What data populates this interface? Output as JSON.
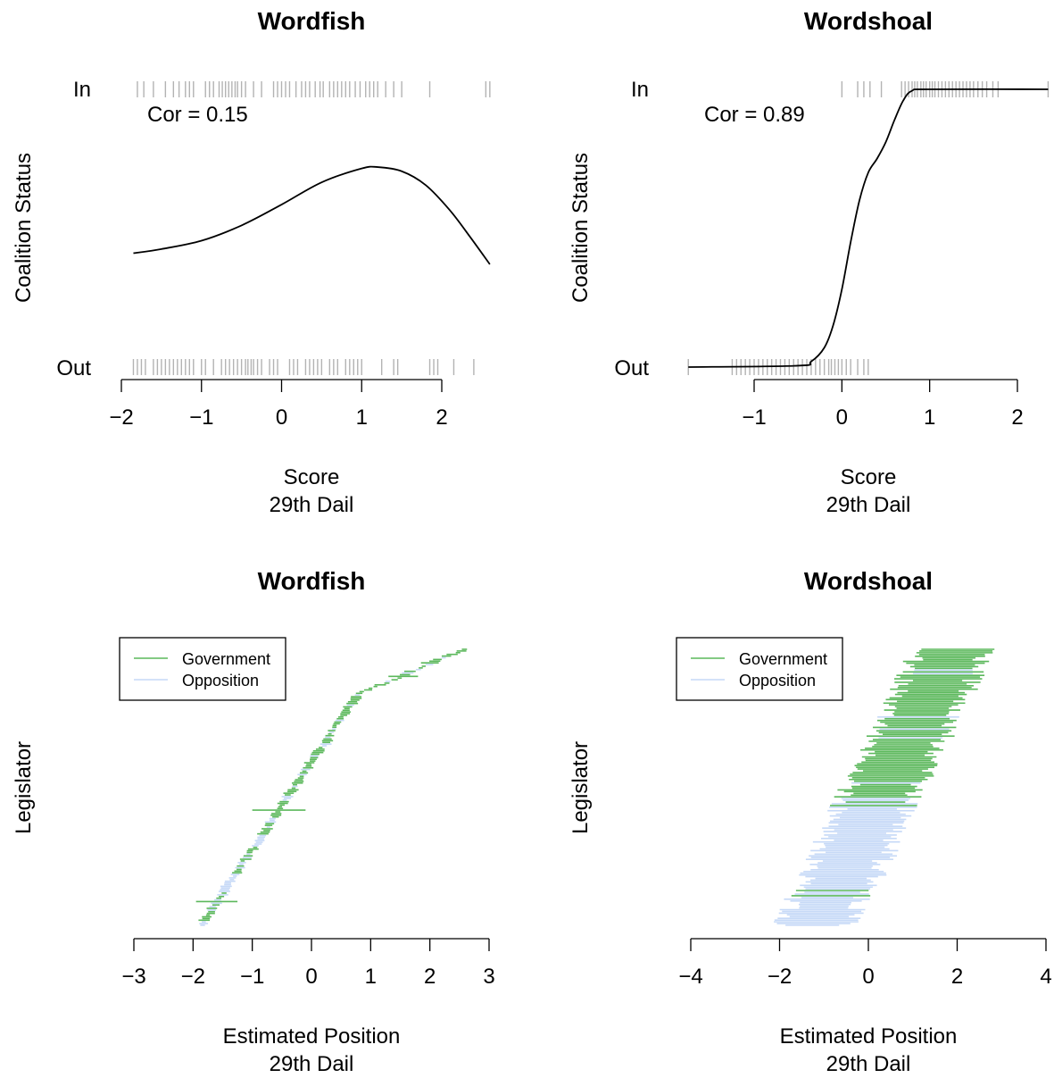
{
  "chart_data": [
    {
      "id": "p1",
      "type": "line",
      "title": "Wordfish",
      "xlabel": "Score",
      "xlabel2": "29th Dail",
      "ylabel": "Coalition Status",
      "y_category_labels": [
        "In",
        "Out"
      ],
      "xticks": [
        -2,
        -1,
        0,
        1,
        2
      ],
      "xlim": [
        -2.0,
        2.6
      ],
      "annotation": "Cor = 0.15",
      "curve": {
        "x": [
          -1.85,
          -1.5,
          -1.0,
          -0.5,
          0.0,
          0.5,
          1.0,
          1.2,
          1.5,
          1.8,
          2.1,
          2.35,
          2.6
        ],
        "p": [
          0.41,
          0.425,
          0.455,
          0.51,
          0.585,
          0.665,
          0.715,
          0.72,
          0.705,
          0.655,
          0.565,
          0.47,
          0.37
        ]
      },
      "rug_in": [
        -1.8,
        -1.72,
        -1.6,
        -1.45,
        -1.35,
        -1.28,
        -1.2,
        -1.15,
        -1.1,
        -0.95,
        -0.9,
        -0.85,
        -0.78,
        -0.74,
        -0.7,
        -0.66,
        -0.62,
        -0.58,
        -0.55,
        -0.5,
        -0.45,
        -0.35,
        -0.25,
        -0.1,
        -0.05,
        0.0,
        0.05,
        0.1,
        0.18,
        0.25,
        0.3,
        0.35,
        0.42,
        0.48,
        0.52,
        0.6,
        0.65,
        0.7,
        0.75,
        0.8,
        0.85,
        0.92,
        0.98,
        1.05,
        1.1,
        1.15,
        1.2,
        1.3,
        1.4,
        1.5,
        1.85,
        2.55,
        2.6
      ],
      "rug_out": [
        -1.85,
        -1.8,
        -1.75,
        -1.7,
        -1.6,
        -1.55,
        -1.5,
        -1.45,
        -1.4,
        -1.35,
        -1.3,
        -1.25,
        -1.2,
        -1.15,
        -1.1,
        -1.0,
        -0.95,
        -0.85,
        -0.75,
        -0.7,
        -0.65,
        -0.6,
        -0.55,
        -0.5,
        -0.45,
        -0.42,
        -0.38,
        -0.35,
        -0.3,
        -0.25,
        -0.15,
        -0.1,
        -0.05,
        0.1,
        0.15,
        0.2,
        0.3,
        0.35,
        0.4,
        0.45,
        0.5,
        0.6,
        0.65,
        0.7,
        0.8,
        0.85,
        0.9,
        0.95,
        1.0,
        1.25,
        1.4,
        1.45,
        1.85,
        1.9,
        1.95,
        2.15,
        2.4
      ]
    },
    {
      "id": "p2",
      "type": "line",
      "title": "Wordshoal",
      "xlabel": "Score",
      "xlabel2": "29th Dail",
      "ylabel": "Coalition Status",
      "y_category_labels": [
        "In",
        "Out"
      ],
      "xticks": [
        -1,
        0,
        1,
        2
      ],
      "xlim": [
        -1.75,
        2.35
      ],
      "annotation": "Cor = 0.89",
      "curve": {
        "x": [
          -1.75,
          -0.5,
          -0.35,
          -0.2,
          -0.1,
          0.0,
          0.1,
          0.2,
          0.3,
          0.4,
          0.5,
          0.6,
          0.7,
          0.8,
          1.0,
          2.35
        ],
        "p": [
          0.0,
          0.005,
          0.02,
          0.07,
          0.15,
          0.28,
          0.45,
          0.6,
          0.7,
          0.75,
          0.81,
          0.89,
          0.96,
          0.995,
          1.0,
          1.0
        ]
      },
      "rug_in": [
        0.0,
        0.18,
        0.25,
        0.32,
        0.45,
        0.68,
        0.72,
        0.76,
        0.8,
        0.83,
        0.86,
        0.9,
        0.93,
        0.96,
        1.0,
        1.03,
        1.06,
        1.1,
        1.14,
        1.18,
        1.22,
        1.26,
        1.3,
        1.34,
        1.38,
        1.42,
        1.46,
        1.5,
        1.55,
        1.6,
        1.65,
        1.72,
        1.78,
        2.35
      ],
      "rug_out": [
        -1.75,
        -1.25,
        -1.2,
        -1.15,
        -1.1,
        -1.05,
        -1.0,
        -0.95,
        -0.9,
        -0.85,
        -0.8,
        -0.75,
        -0.7,
        -0.65,
        -0.6,
        -0.55,
        -0.5,
        -0.45,
        -0.4,
        -0.35,
        -0.3,
        -0.25,
        -0.2,
        -0.15,
        -0.12,
        -0.08,
        -0.04,
        0.0,
        0.05,
        0.1,
        0.18,
        0.25,
        0.3
      ]
    },
    {
      "id": "p3",
      "type": "interval",
      "title": "Wordfish",
      "xlabel": "Estimated Position",
      "xlabel2": "29th Dail",
      "ylabel": "Legislator",
      "xticks": [
        -3,
        -2,
        -1,
        0,
        1,
        2,
        3
      ],
      "xlim": [
        -3,
        3
      ],
      "legend": {
        "position": "top-left",
        "entries": [
          "Government",
          "Opposition"
        ]
      },
      "colors": {
        "Government": "#5cb85c",
        "Opposition": "#c6d9f7"
      },
      "n_legislators": 160,
      "estimate_range": [
        -1.85,
        2.6
      ],
      "intervals": [
        {
          "group": "Government",
          "estimate": -1.6,
          "halfwidth": 0.35
        },
        {
          "group": "Government",
          "estimate": -0.55,
          "halfwidth": 0.45
        },
        {
          "group": "Government",
          "estimate": 1.55,
          "halfwidth": 0.25
        },
        {
          "group": "Government",
          "estimate": 2.0,
          "halfwidth": 0.15
        }
      ]
    },
    {
      "id": "p4",
      "type": "interval",
      "title": "Wordshoal",
      "xlabel": "Estimated Position",
      "xlabel2": "29th Dail",
      "ylabel": "Legislator",
      "xticks": [
        -4,
        -2,
        0,
        2,
        4
      ],
      "xlim": [
        -4,
        4
      ],
      "legend": {
        "position": "top-left",
        "entries": [
          "Government",
          "Opposition"
        ]
      },
      "colors": {
        "Government": "#5cb85c",
        "Opposition": "#c6d9f7"
      },
      "n_legislators": 160,
      "estimate_range": [
        -1.2,
        1.9
      ]
    }
  ]
}
